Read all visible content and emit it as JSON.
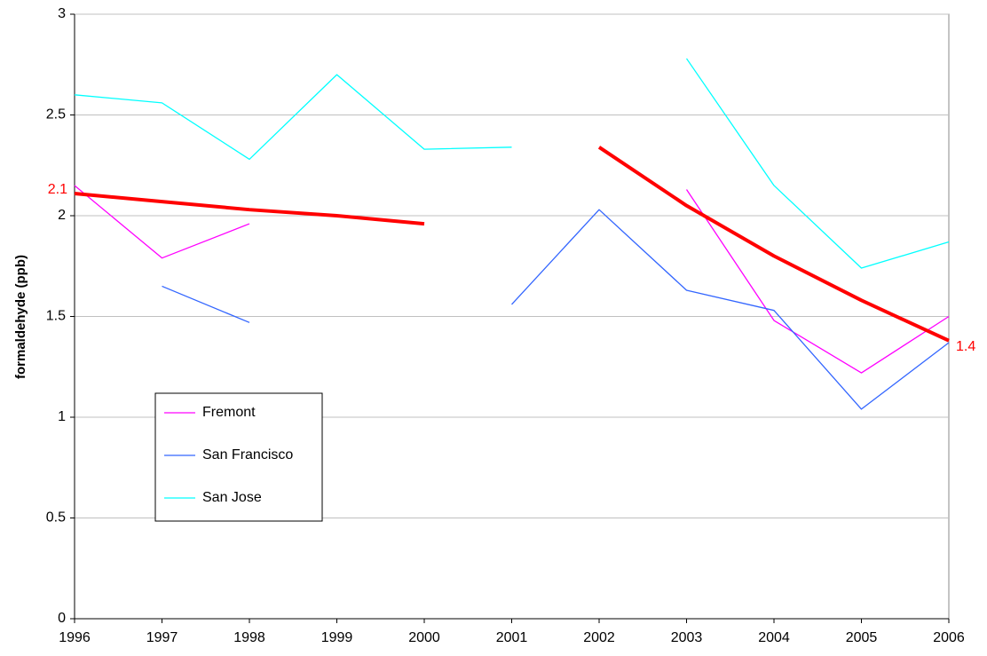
{
  "chart_data": {
    "type": "line",
    "y_label": "formaldehyde (ppb)",
    "x": [
      1996,
      1997,
      1998,
      1999,
      2000,
      2001,
      2002,
      2003,
      2004,
      2005,
      2006
    ],
    "xlim": [
      1996,
      2006
    ],
    "xticks": [
      1996,
      1997,
      1998,
      1999,
      2000,
      2001,
      2002,
      2003,
      2004,
      2005,
      2006
    ],
    "ylim": [
      0,
      3
    ],
    "yticks": [
      0,
      0.5,
      1,
      1.5,
      2,
      2.5,
      3
    ],
    "grid": true,
    "legend": "lower-left",
    "series": [
      {
        "name": "Fremont",
        "color": "#ff00ff",
        "values": [
          2.15,
          1.79,
          1.96,
          null,
          null,
          null,
          null,
          2.13,
          1.48,
          1.22,
          1.5
        ]
      },
      {
        "name": "San Francisco",
        "color": "#3366ff",
        "values": [
          null,
          1.65,
          1.47,
          null,
          null,
          1.56,
          2.03,
          1.63,
          1.53,
          1.04,
          1.37
        ]
      },
      {
        "name": "San Jose",
        "color": "#00ffff",
        "values": [
          2.6,
          2.56,
          2.28,
          2.7,
          2.33,
          2.34,
          null,
          2.78,
          2.15,
          1.74,
          1.87
        ]
      },
      {
        "color": "#ff0000",
        "values": [
          2.11,
          2.07,
          2.03,
          2.0,
          1.96,
          null,
          2.34,
          2.05,
          1.8,
          1.58,
          1.38
        ],
        "value_labels": [
          "2.1",
          null,
          null,
          null,
          null,
          null,
          null,
          null,
          null,
          null,
          "1.4"
        ]
      }
    ]
  }
}
